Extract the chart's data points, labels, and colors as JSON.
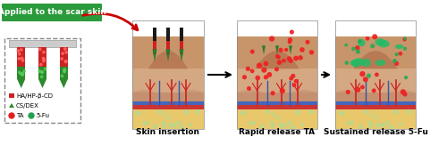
{
  "title_text": "Applied to the scar skin",
  "title_bg": "#2a9a3a",
  "title_color": "white",
  "labels": [
    "Skin insertion",
    "Rapid release TA",
    "Sustained release 5-Fu"
  ],
  "skin_colors": {
    "top_brown": "#c8956b",
    "scar_bump": "#b87a55",
    "dermis": "#d4a882",
    "lower_dermis": "#c49070",
    "blue_layer": "#4466bb",
    "red_layer": "#cc3333",
    "subcutis": "#e8c86a",
    "subcutis_dots": "#b8d890"
  },
  "arrow_color": "#cc0000",
  "needle_tip_color": "#2d7a2d",
  "needle_body_red": "#cc2222",
  "blood_vessel_red": "#cc2222",
  "blood_vessel_blue": "#3355aa",
  "ta_dot_color": "#ee2222",
  "fu_dot_color": "#22aa55",
  "fu_blob_color": "#22bb66"
}
